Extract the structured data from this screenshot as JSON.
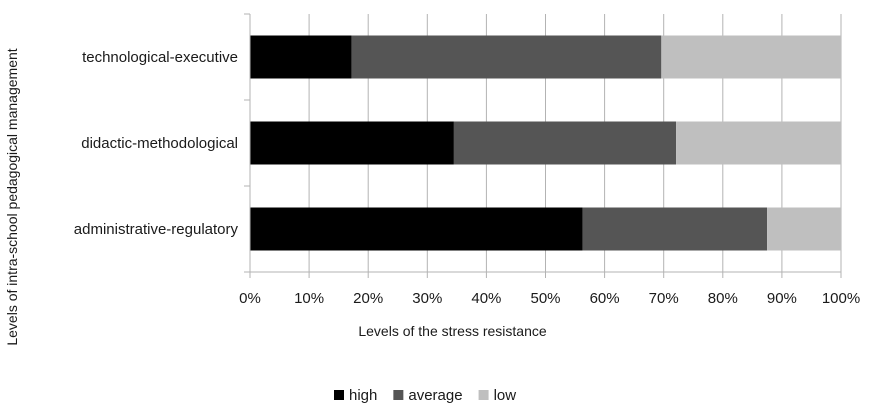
{
  "chart_data": {
    "type": "bar",
    "orientation": "horizontal",
    "stacked": "percent",
    "title": "",
    "xlabel": "Levels of the stress resistance",
    "ylabel": "Levels of intra-school pedagogical management",
    "xlim": [
      0,
      100
    ],
    "x_ticks": [
      "0%",
      "10%",
      "20%",
      "30%",
      "40%",
      "50%",
      "60%",
      "70%",
      "80%",
      "90%",
      "100%"
    ],
    "grid": "vertical",
    "legend": "bottom",
    "categories": [
      "technological-executive",
      "didactic-methodological",
      "administrative-regulatory"
    ],
    "series": [
      {
        "name": "high",
        "color": "#000000",
        "values": [
          17.2,
          34.5,
          56.3
        ]
      },
      {
        "name": "average",
        "color": "#555555",
        "values": [
          52.4,
          37.6,
          31.2
        ]
      },
      {
        "name": "low",
        "color": "#bfbfbf",
        "values": [
          30.4,
          27.9,
          12.5
        ]
      }
    ]
  }
}
